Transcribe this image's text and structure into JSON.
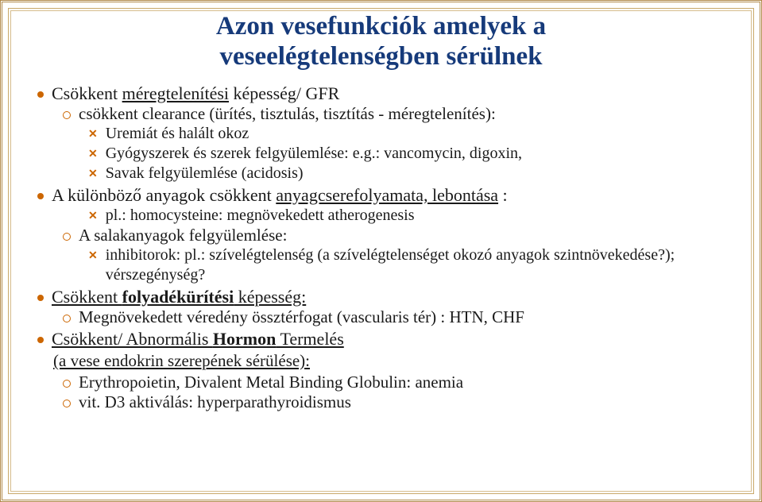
{
  "colors": {
    "title": "#163a7a",
    "bullet": "#cc6600",
    "text": "#1a1a1a",
    "outer_border": "#b0894a",
    "inner_border1": "#c9a96a",
    "inner_border2": "#d6bd8c",
    "background": "#ffffff"
  },
  "typography": {
    "title_fontsize": 33,
    "title_weight": "bold",
    "lvl1_fontsize": 22,
    "lvl2_fontsize": 21,
    "lvl3_fontsize": 20,
    "font_family": "Georgia, 'Book Antiqua', serif"
  },
  "title_line1": "Azon vesefunkciók amelyek a",
  "title_line2": "veseelégtelenségben sérülnek",
  "b1": {
    "label_a": "Csökkent ",
    "label_b": "méregtelenítési",
    "label_c": " képesség/ GFR",
    "s1": {
      "label": "csökkent clearance (ürítés, tisztulás, tisztítás - méregtelenítés):",
      "t1": "Uremiát és halált okoz",
      "t2": "Gyógyszerek és szerek felgyülemlése: e.g.: vancomycin, digoxin,",
      "t3": "Savak felgyülemlése (acidosis)"
    }
  },
  "b2": {
    "label_a": "A különböző anyagok csökkent ",
    "label_b": "anyagcserefolyamata, lebontása",
    "label_c": " :",
    "s1": {
      "t1": "pl.: homocysteine: megnövekedett atherogenesis"
    },
    "s2": {
      "label": "A salakanyagok felgyülemlése:",
      "t1": "inhibitorok: pl.: szívelégtelenség (a szívelégtelenséget okozó anyagok szintnövekedése?); vérszegénység?"
    }
  },
  "b3": {
    "label_a": "Csökkent ",
    "label_b": "folyadékürítési",
    "label_c": " képesség:",
    "s1": {
      "label": "Megnövekedett véredény össztérfogat (vascularis tér) : HTN, CHF"
    }
  },
  "b4": {
    "label_a": "Csökkent/ Abnormális ",
    "label_b": "Hormon",
    "label_c": " Termelés",
    "paren": "(a vese endokrin szerepének sérülése):",
    "s1": {
      "label": "Erythropoietin, Divalent Metal Binding Globulin: anemia"
    },
    "s2": {
      "label": "vit. D3 aktiválás: hyperparathyroidismus"
    }
  }
}
